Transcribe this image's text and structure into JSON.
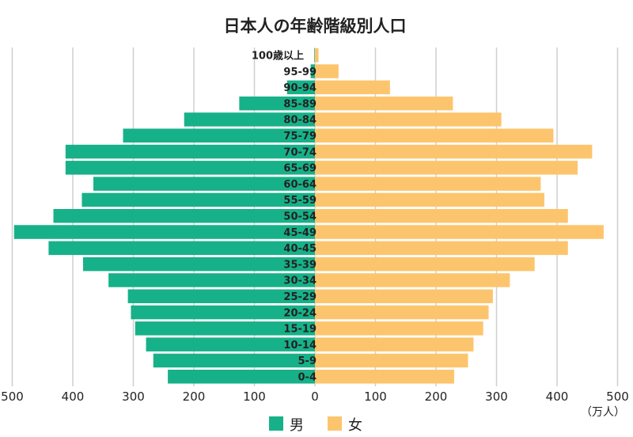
{
  "chart_data": {
    "type": "bar",
    "orientation": "horizontal-pyramid",
    "title": "日本人の年齢階級別人口",
    "unit_label": "（万人）",
    "x_ticks_left": [
      "500",
      "400",
      "300",
      "200",
      "100",
      "0"
    ],
    "x_ticks_right": [
      "100",
      "200",
      "300",
      "400",
      "500"
    ],
    "xlim": [
      0,
      500
    ],
    "grid": true,
    "legend_position": "bottom",
    "categories": [
      "100歳以上",
      "95-99",
      "90-94",
      "85-89",
      "80-84",
      "75-79",
      "70-74",
      "65-69",
      "60-64",
      "55-59",
      "50-54",
      "45-49",
      "40-45",
      "35-39",
      "30-34",
      "25-29",
      "20-24",
      "15-19",
      "10-14",
      "5-9",
      "0-4"
    ],
    "series": [
      {
        "name": "男",
        "color": "#17b189",
        "values": [
          1,
          7,
          46,
          125,
          216,
          317,
          412,
          412,
          366,
          385,
          432,
          497,
          440,
          383,
          341,
          309,
          304,
          297,
          279,
          267,
          243
        ]
      },
      {
        "name": "女",
        "color": "#fcc56d",
        "values": [
          6,
          39,
          124,
          228,
          308,
          394,
          458,
          434,
          373,
          379,
          418,
          477,
          418,
          363,
          322,
          294,
          287,
          278,
          262,
          253,
          230
        ]
      }
    ]
  }
}
